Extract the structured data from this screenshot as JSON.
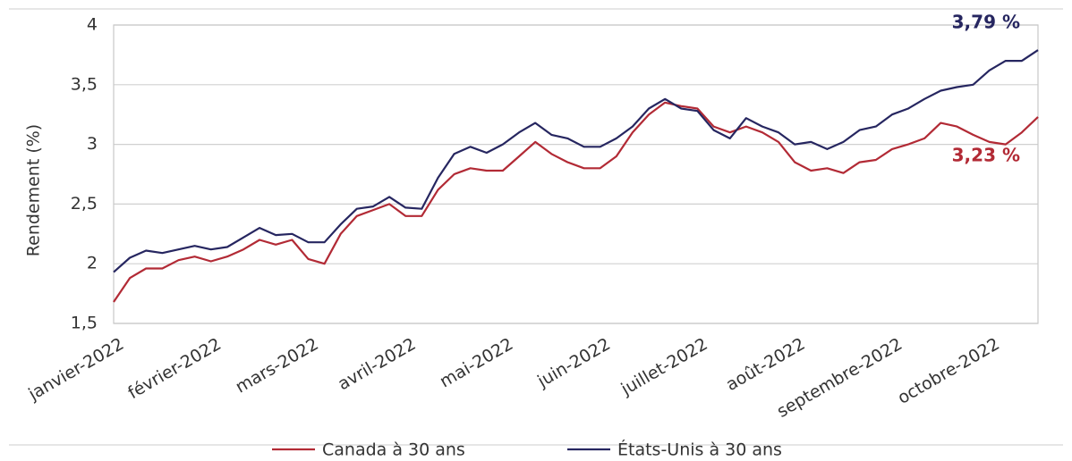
{
  "chart_data": {
    "type": "line",
    "y_label": "Rendement (%)",
    "categories": [
      "janvier-2022",
      null,
      null,
      null,
      null,
      null,
      "février-2022",
      null,
      null,
      null,
      null,
      null,
      "mars-2022",
      null,
      null,
      null,
      null,
      null,
      "avril-2022",
      null,
      null,
      null,
      null,
      null,
      "mai-2022",
      null,
      null,
      null,
      null,
      null,
      "juin-2022",
      null,
      null,
      null,
      null,
      null,
      "juillet-2022",
      null,
      null,
      null,
      null,
      null,
      "août-2022",
      null,
      null,
      null,
      null,
      null,
      "septembre-2022",
      null,
      null,
      null,
      null,
      null,
      "octobre-2022",
      null,
      null,
      null
    ],
    "series": [
      {
        "name": "Canada à 30 ans",
        "color": "#b22a35",
        "values": [
          1.68,
          1.88,
          1.96,
          1.96,
          2.03,
          2.06,
          2.02,
          2.06,
          2.12,
          2.2,
          2.16,
          2.2,
          2.04,
          2.0,
          2.25,
          2.4,
          2.45,
          2.5,
          2.4,
          2.4,
          2.62,
          2.75,
          2.8,
          2.78,
          2.78,
          2.9,
          3.02,
          2.92,
          2.85,
          2.8,
          2.8,
          2.9,
          3.1,
          3.25,
          3.35,
          3.32,
          3.3,
          3.15,
          3.1,
          3.15,
          3.1,
          3.02,
          2.85,
          2.78,
          2.8,
          2.76,
          2.85,
          2.87,
          2.96,
          3.0,
          3.05,
          3.18,
          3.15,
          3.08,
          3.02,
          3.0,
          3.1,
          3.23
        ]
      },
      {
        "name": "États-Unis à 30 ans",
        "color": "#262660",
        "values": [
          1.93,
          2.05,
          2.11,
          2.09,
          2.12,
          2.15,
          2.12,
          2.14,
          2.22,
          2.3,
          2.24,
          2.25,
          2.18,
          2.18,
          2.33,
          2.46,
          2.48,
          2.56,
          2.47,
          2.46,
          2.72,
          2.92,
          2.98,
          2.93,
          3.0,
          3.1,
          3.18,
          3.08,
          3.05,
          2.98,
          2.98,
          3.05,
          3.15,
          3.3,
          3.38,
          3.3,
          3.28,
          3.12,
          3.05,
          3.22,
          3.15,
          3.1,
          3.0,
          3.02,
          2.96,
          3.02,
          3.12,
          3.15,
          3.25,
          3.3,
          3.38,
          3.45,
          3.48,
          3.5,
          3.62,
          3.7,
          3.7,
          3.79
        ]
      }
    ],
    "annotations": [
      "3,23 %",
      "3,79 %"
    ],
    "ylim": [
      1.5,
      4
    ],
    "yticks": [
      {
        "value": 1.5,
        "label": "1,5"
      },
      2,
      {
        "value": 2.5,
        "label": "2,5"
      },
      3,
      {
        "value": 3.5,
        "label": "3,5"
      },
      4
    ],
    "grid": true,
    "legend": "bottom"
  }
}
